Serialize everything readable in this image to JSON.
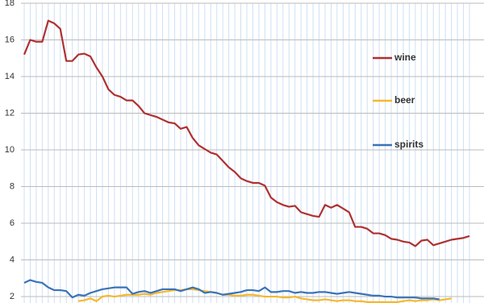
{
  "chart_data": {
    "type": "line",
    "categories": [
      null,
      null,
      null,
      null,
      null,
      null,
      null,
      null,
      null,
      null,
      null,
      null,
      null,
      null,
      null,
      null,
      null,
      null,
      null,
      null,
      null,
      null,
      null,
      null,
      null,
      null,
      null,
      null,
      null,
      null,
      null,
      null,
      null,
      null,
      null,
      null,
      null,
      null,
      null,
      null,
      null,
      null,
      null,
      null,
      null,
      null,
      null,
      null,
      null,
      null,
      null,
      null,
      null,
      null,
      null,
      null,
      null,
      null,
      null,
      null,
      null,
      null,
      null,
      null,
      null,
      null,
      null,
      null,
      null,
      null,
      null,
      null,
      null,
      null,
      null
    ],
    "series": [
      {
        "name": "wine",
        "color": "#b03030",
        "values": [
          15.2,
          16.0,
          15.9,
          15.9,
          17.05,
          16.9,
          16.6,
          14.85,
          14.85,
          15.2,
          15.25,
          15.1,
          14.5,
          14.0,
          13.3,
          13.0,
          12.9,
          12.7,
          12.7,
          12.4,
          12.0,
          11.9,
          11.8,
          11.65,
          11.5,
          11.45,
          11.15,
          11.25,
          10.65,
          10.25,
          10.05,
          9.85,
          9.75,
          9.4,
          9.05,
          8.8,
          8.45,
          8.3,
          8.2,
          8.2,
          8.05,
          7.4,
          7.15,
          7.0,
          6.9,
          6.95,
          6.6,
          6.5,
          6.4,
          6.35,
          7.0,
          6.85,
          7.0,
          6.8,
          6.6,
          5.8,
          5.8,
          5.7,
          5.45,
          5.45,
          5.35,
          5.15,
          5.1,
          5.0,
          4.95,
          4.75,
          5.05,
          5.1,
          4.8,
          4.9,
          5.0,
          5.1,
          5.15,
          5.2,
          5.3
        ]
      },
      {
        "name": "beer",
        "color": "#f5b82e",
        "values": [
          null,
          null,
          null,
          null,
          null,
          null,
          null,
          null,
          null,
          1.75,
          1.8,
          1.9,
          1.75,
          2.0,
          2.05,
          2.0,
          2.05,
          2.1,
          2.1,
          2.1,
          2.15,
          2.1,
          2.2,
          2.25,
          2.3,
          2.35,
          2.35,
          2.4,
          2.4,
          2.35,
          2.3,
          2.25,
          2.2,
          2.1,
          2.1,
          2.05,
          2.05,
          2.1,
          2.1,
          2.05,
          2.0,
          2.0,
          2.0,
          1.95,
          1.95,
          2.0,
          1.9,
          1.85,
          1.8,
          1.8,
          1.85,
          1.8,
          1.75,
          1.8,
          1.8,
          1.75,
          1.75,
          1.7,
          1.7,
          1.7,
          1.7,
          1.7,
          1.7,
          1.75,
          1.8,
          1.75,
          1.8,
          1.8,
          1.85,
          1.8,
          1.85,
          1.9,
          null,
          null,
          null
        ]
      },
      {
        "name": "spirits",
        "color": "#3a73b8",
        "values": [
          2.75,
          2.9,
          2.8,
          2.75,
          2.5,
          2.35,
          2.35,
          2.3,
          1.95,
          2.1,
          2.05,
          2.2,
          2.3,
          2.4,
          2.45,
          2.5,
          2.5,
          2.5,
          2.15,
          2.25,
          2.3,
          2.2,
          2.3,
          2.4,
          2.4,
          2.4,
          2.3,
          2.4,
          2.5,
          2.4,
          2.2,
          2.25,
          2.2,
          2.1,
          2.15,
          2.2,
          2.25,
          2.35,
          2.35,
          2.3,
          2.5,
          2.25,
          2.25,
          2.3,
          2.3,
          2.2,
          2.25,
          2.2,
          2.2,
          2.25,
          2.25,
          2.2,
          2.15,
          2.2,
          2.25,
          2.2,
          2.15,
          2.1,
          2.05,
          2.05,
          2.0,
          2.0,
          1.95,
          1.95,
          1.95,
          1.95,
          1.9,
          1.9,
          1.9,
          1.85,
          null,
          null,
          null,
          null,
          null
        ]
      }
    ],
    "ylim": [
      1.65,
      18
    ],
    "yticks": [
      2,
      4,
      6,
      8,
      10,
      12,
      14,
      16,
      18
    ],
    "grid": true,
    "legend": "right"
  }
}
